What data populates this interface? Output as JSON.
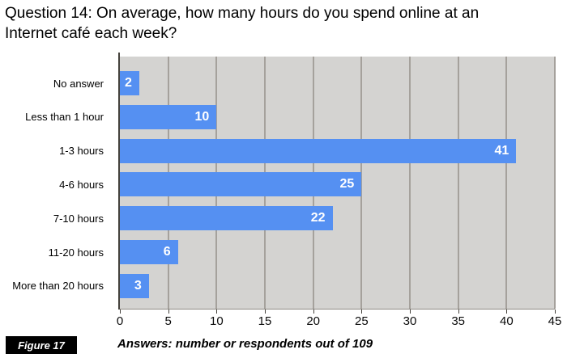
{
  "title": {
    "line1": "Question 14: On average, how many hours do you spend online at an",
    "line2": "Internet café each week?"
  },
  "figure_badge": {
    "label": "Figure 17",
    "bg": "#000000",
    "text_color": "#ffffff"
  },
  "caption": "Answers: number or respondents out of 109",
  "chart_data": {
    "type": "bar",
    "orientation": "horizontal",
    "title": "Question 14: On average, how many hours do you spend online at an Internet café each week?",
    "categories": [
      "No answer",
      "Less than 1 hour",
      "1-3 hours",
      "4-6 hours",
      "7-10 hours",
      "11-20 hours",
      "More than 20 hours"
    ],
    "values": [
      2,
      10,
      41,
      25,
      22,
      6,
      3
    ],
    "xlim": [
      0,
      45
    ],
    "x_ticks": [
      0,
      5,
      10,
      15,
      20,
      25,
      30,
      35,
      40,
      45
    ],
    "grid": true,
    "legend": false,
    "bar_color": "#5590f2",
    "plot_background": "#d4d3d1",
    "gridline_color": "#a5a19c",
    "value_label_color": "#ffffff",
    "caption": "Answers: number or respondents out of 109"
  }
}
